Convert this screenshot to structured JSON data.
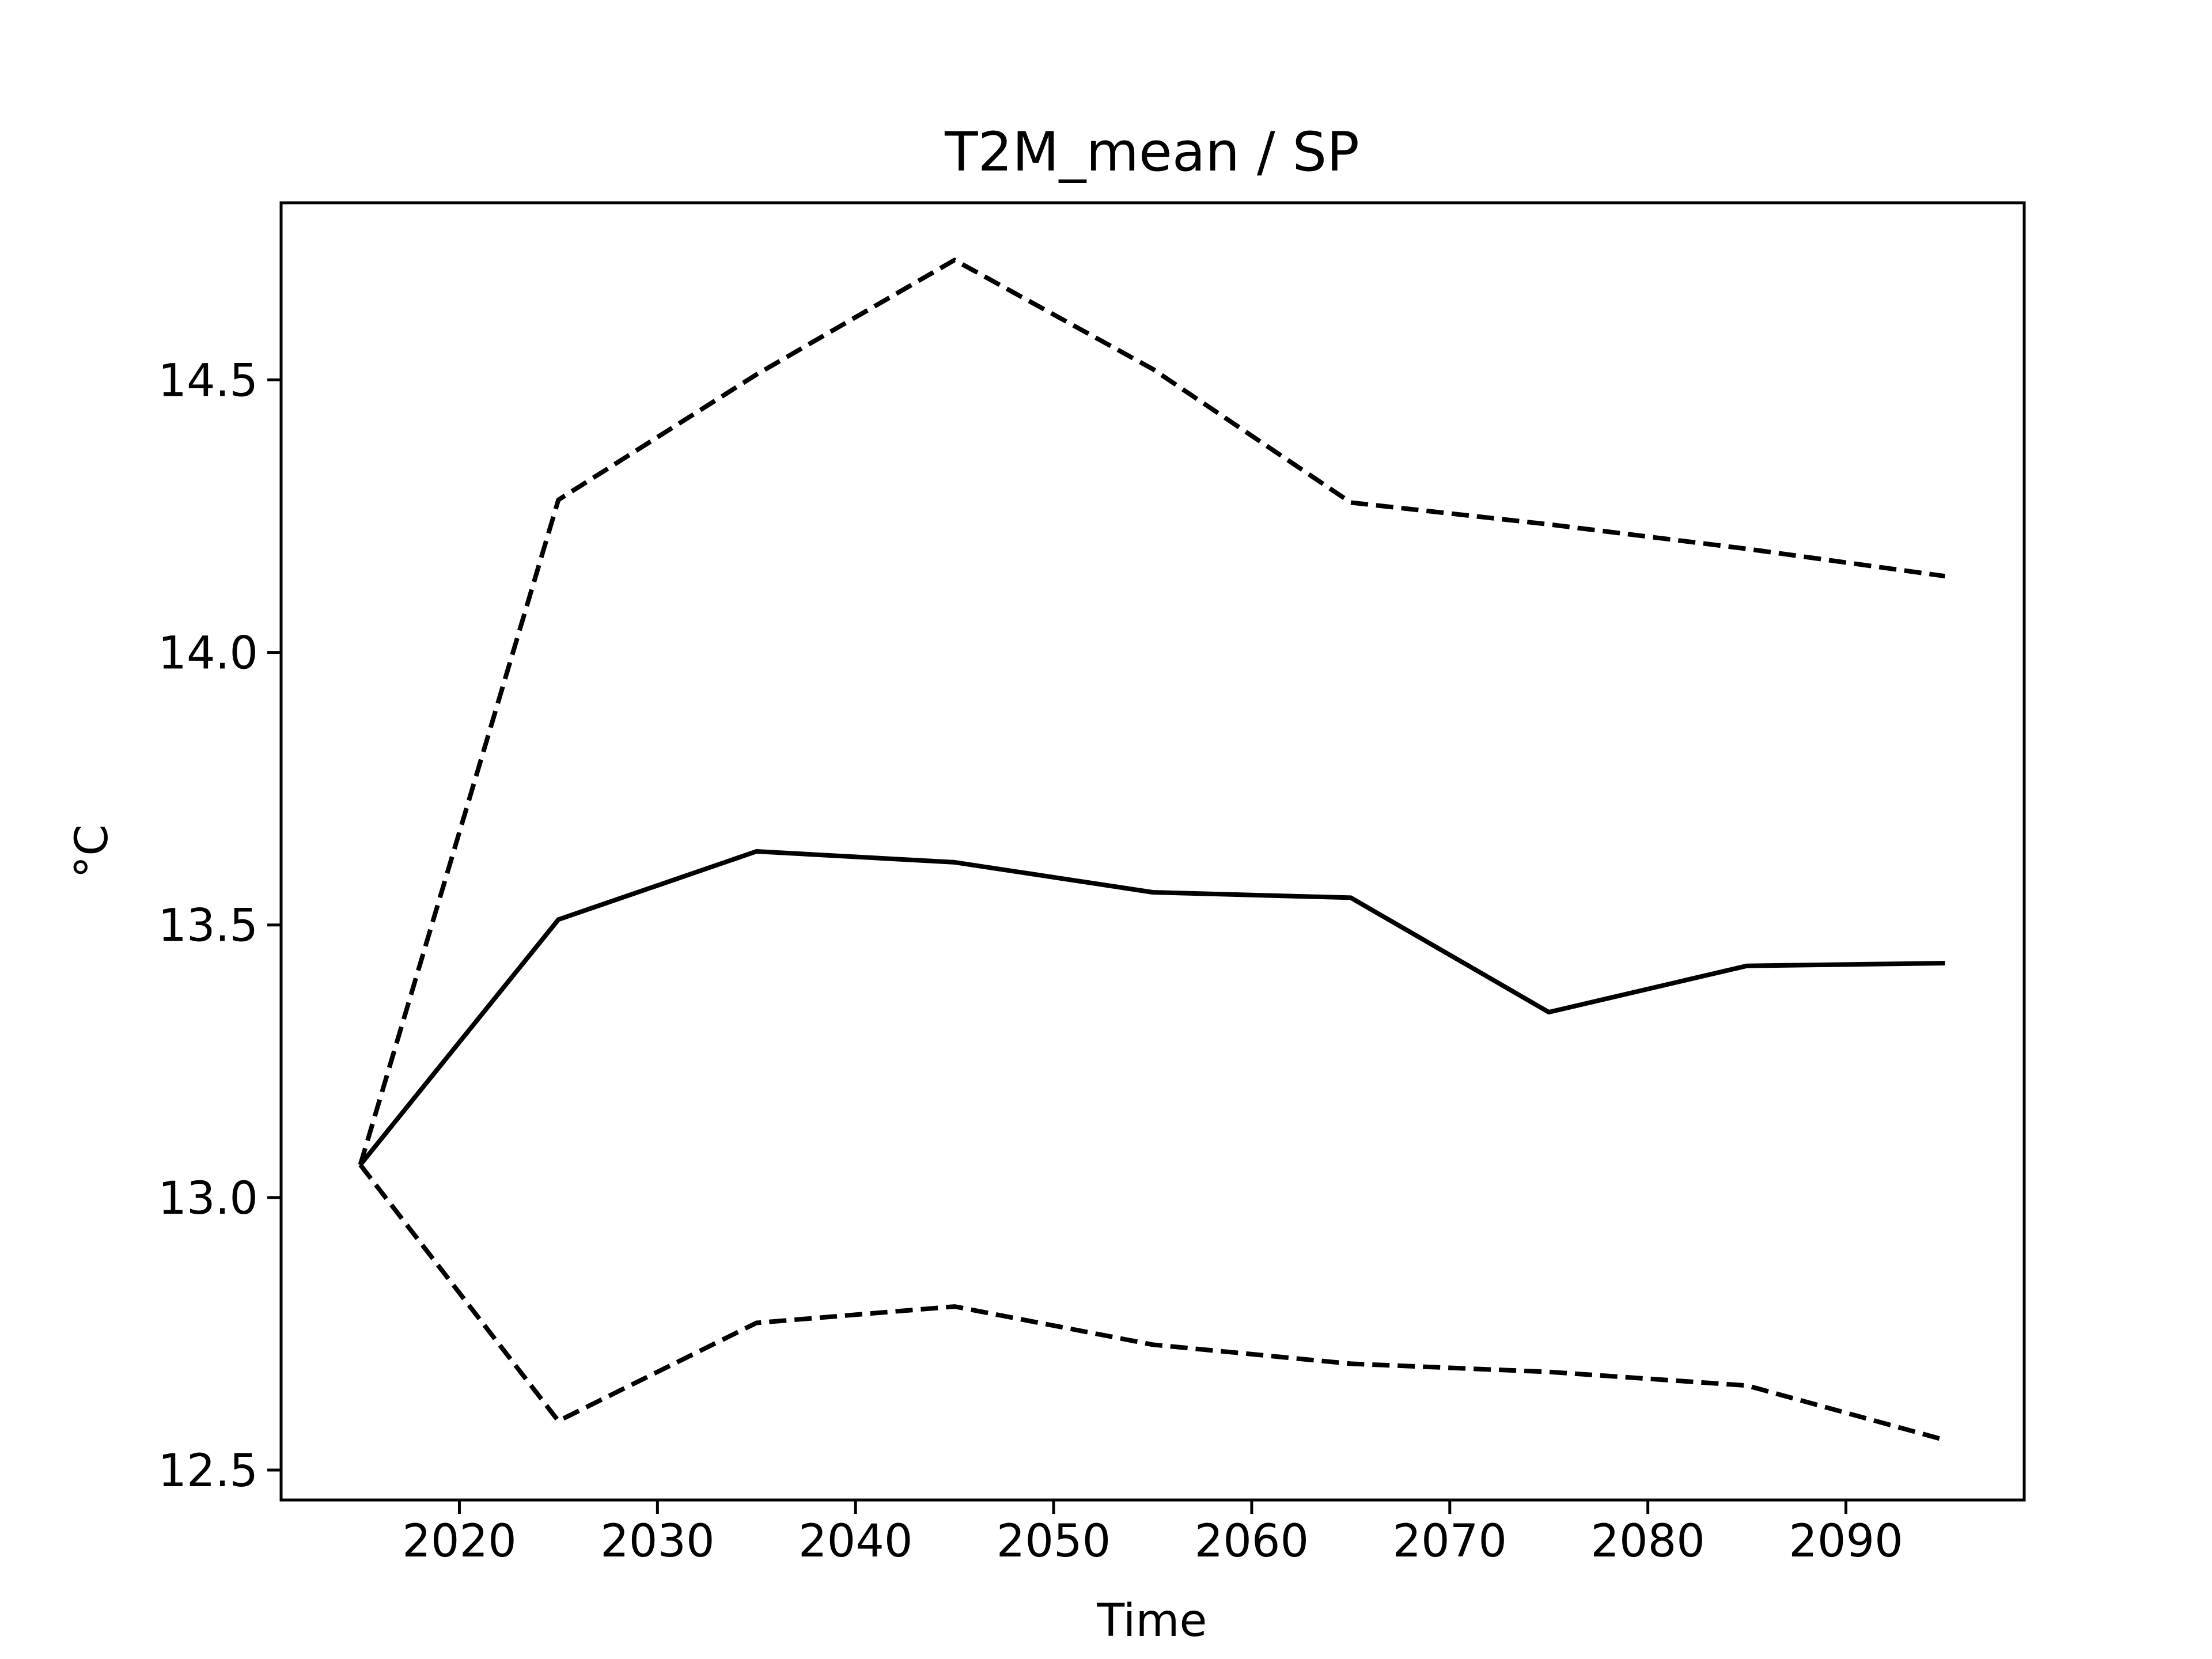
{
  "chart_data": {
    "type": "line",
    "title": "T2M_mean / SP",
    "xlabel": "Time",
    "ylabel": "°C",
    "xlim": [
      2011,
      2099
    ],
    "ylim": [
      12.445,
      14.825
    ],
    "xticks": [
      2020,
      2030,
      2040,
      2050,
      2060,
      2070,
      2080,
      2090
    ],
    "yticks": [
      12.5,
      13.0,
      13.5,
      14.0,
      14.5
    ],
    "ytick_labels": [
      "12.5",
      "13.0",
      "13.5",
      "14.0",
      "14.5"
    ],
    "grid": false,
    "x": [
      2015,
      2025,
      2035,
      2045,
      2055,
      2065,
      2075,
      2085,
      2095
    ],
    "series": [
      {
        "style": "dashed",
        "color": "#000000",
        "values": [
          13.06,
          14.28,
          14.51,
          14.72,
          14.52,
          14.275,
          14.235,
          14.19,
          14.14
        ]
      },
      {
        "style": "solid",
        "color": "#000000",
        "values": [
          13.06,
          13.51,
          13.635,
          13.615,
          13.56,
          13.55,
          13.34,
          13.425,
          13.43
        ]
      },
      {
        "style": "dashed",
        "color": "#000000",
        "values": [
          13.06,
          12.59,
          12.77,
          12.8,
          12.73,
          12.695,
          12.68,
          12.655,
          12.555
        ]
      }
    ]
  }
}
